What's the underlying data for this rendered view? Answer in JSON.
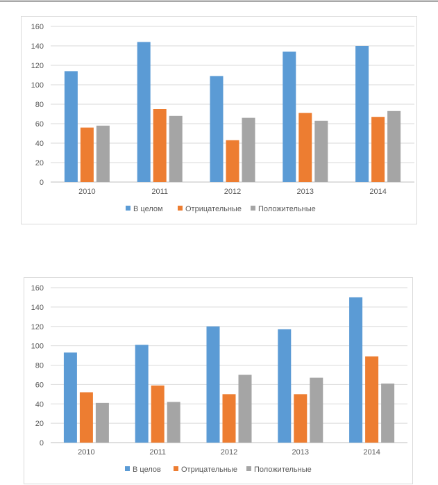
{
  "colors": {
    "series": [
      "#5b9bd5",
      "#ed7d31",
      "#a5a5a5"
    ],
    "grid": "#d9d9d9",
    "axis": "#bfbfbf"
  },
  "chart_data": [
    {
      "type": "bar",
      "categories": [
        "2010",
        "2011",
        "2012",
        "2013",
        "2014"
      ],
      "series": [
        {
          "name": "В целом",
          "values": [
            114,
            144,
            109,
            134,
            140
          ]
        },
        {
          "name": "Отрицательные",
          "values": [
            56,
            75,
            43,
            71,
            67
          ]
        },
        {
          "name": "Положительные",
          "values": [
            58,
            68,
            66,
            63,
            73
          ]
        }
      ],
      "ylim": [
        0,
        160
      ],
      "yticks": [
        0,
        20,
        40,
        60,
        80,
        100,
        120,
        140,
        160
      ],
      "grid": true,
      "legend": "bottom"
    },
    {
      "type": "bar",
      "categories": [
        "2010",
        "2011",
        "2012",
        "2013",
        "2014"
      ],
      "series": [
        {
          "name": "В целов",
          "values": [
            93,
            101,
            120,
            117,
            150
          ]
        },
        {
          "name": "Отрицательные",
          "values": [
            52,
            59,
            50,
            50,
            89
          ]
        },
        {
          "name": "Положительные",
          "values": [
            41,
            42,
            70,
            67,
            61
          ]
        }
      ],
      "ylim": [
        0,
        160
      ],
      "yticks": [
        0,
        20,
        40,
        60,
        80,
        100,
        120,
        140,
        160
      ],
      "grid": true,
      "legend": "bottom"
    }
  ]
}
